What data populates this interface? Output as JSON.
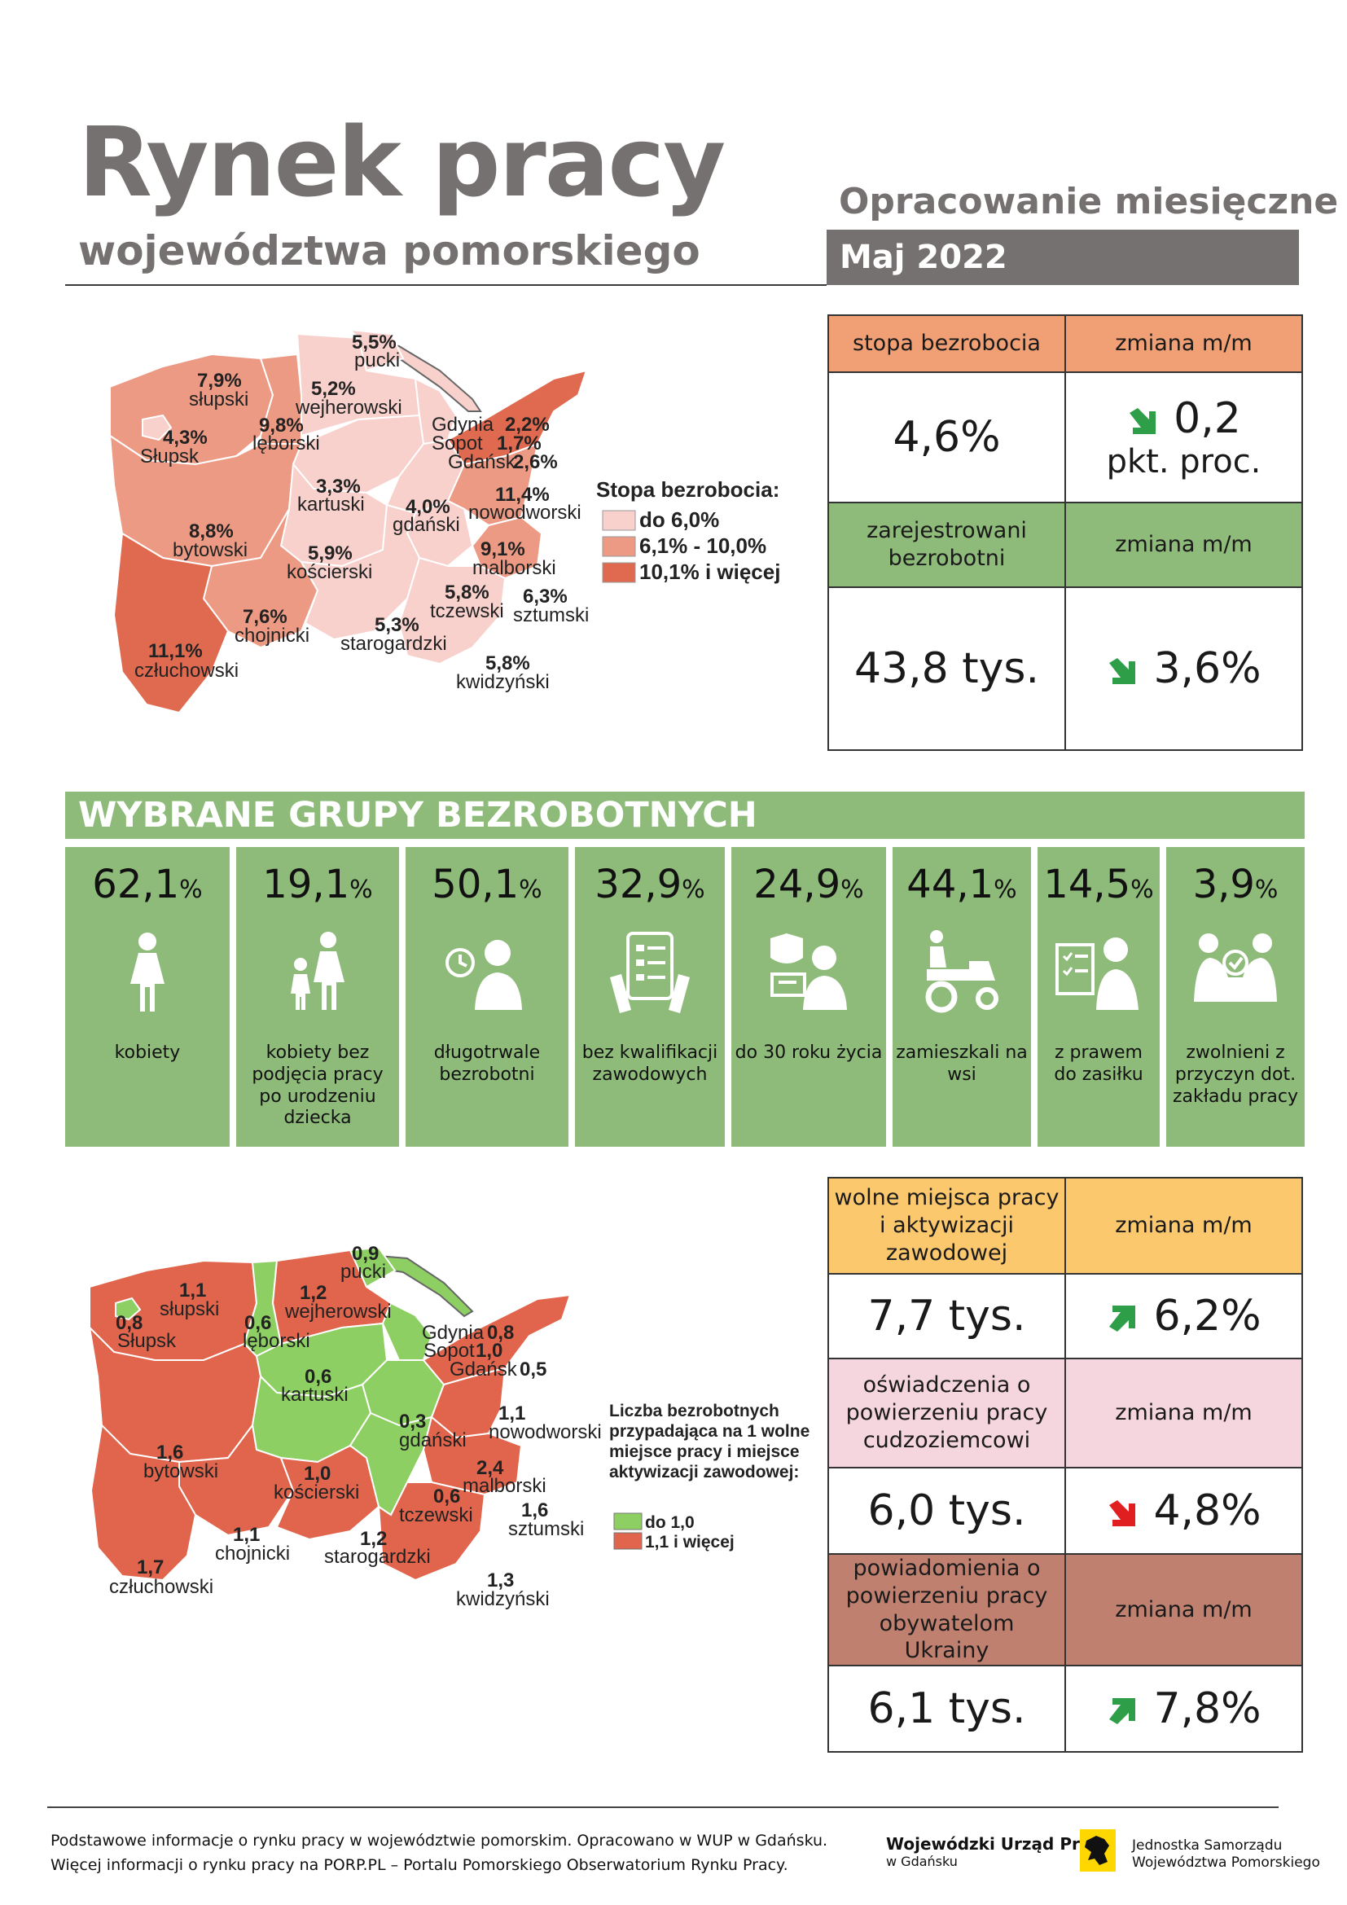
{
  "header": {
    "title": "Rynek pracy",
    "subtitle": "województwa pomorskiego",
    "publication_type": "Opracowanie miesięczne",
    "period": "Maj 2022"
  },
  "kpi_unemployment": {
    "rate_label": "stopa bezrobocia",
    "change_label": "zmiana m/m",
    "rate_value": "4,6%",
    "rate_change_value": "0,2",
    "rate_change_unit": "pkt. proc.",
    "rate_change_direction": "down",
    "registered_label": "zarejestrowani bezrobotni",
    "registered_change_label": "zmiana m/m",
    "registered_value": "43,8 tys.",
    "registered_change_value": "3,6%",
    "registered_change_direction": "down"
  },
  "colors": {
    "accent_green": "#8fbb7a",
    "header_salmon": "#f0a074",
    "yellow": "#fcc86e",
    "pink": "#f5d5de",
    "brown": "#c08070",
    "arrow_green": "#2e9e48",
    "arrow_red": "#e02020"
  },
  "map1": {
    "legend_title": "Stopa bezrobocia:",
    "legend": [
      "do 6,0%",
      "6,1% - 10,0%",
      "10,1% i więcej"
    ],
    "legend_colors": [
      "#f8d0cc",
      "#ec9a84",
      "#e06a50"
    ],
    "regions": [
      {
        "value": "5,5%",
        "name": "pucki",
        "cls": 0
      },
      {
        "value": "7,9%",
        "name": "słupski",
        "cls": 1
      },
      {
        "value": "5,2%",
        "name": "wejherowski",
        "cls": 0
      },
      {
        "value": "4,3%",
        "name": "Słupsk",
        "cls": 0
      },
      {
        "value": "9,8%",
        "name": "lęborski",
        "cls": 1
      },
      {
        "value": "2,2%",
        "name": "Gdynia",
        "cls": 0
      },
      {
        "value": "1,7%",
        "name": "Sopot",
        "cls": 0
      },
      {
        "value": "2,6%",
        "name": "Gdańsk",
        "cls": 0
      },
      {
        "value": "3,3%",
        "name": "kartuski",
        "cls": 0
      },
      {
        "value": "11,4%",
        "name": "nowodworski",
        "cls": 2
      },
      {
        "value": "4,0%",
        "name": "gdański",
        "cls": 0
      },
      {
        "value": "8,8%",
        "name": "bytowski",
        "cls": 1
      },
      {
        "value": "5,9%",
        "name": "kościerski",
        "cls": 0
      },
      {
        "value": "9,1%",
        "name": "malborski",
        "cls": 1
      },
      {
        "value": "5,8%",
        "name": "tczewski",
        "cls": 0
      },
      {
        "value": "6,3%",
        "name": "sztumski",
        "cls": 1
      },
      {
        "value": "7,6%",
        "name": "chojnicki",
        "cls": 1
      },
      {
        "value": "5,3%",
        "name": "starogardzki",
        "cls": 0
      },
      {
        "value": "11,1%",
        "name": "człuchowski",
        "cls": 2
      },
      {
        "value": "5,8%",
        "name": "kwidzyński",
        "cls": 0
      }
    ]
  },
  "groups": {
    "title": "WYBRANE GRUPY BEZROBOTNYCH",
    "items": [
      {
        "value": "62,1",
        "unit": "%",
        "label": "kobiety",
        "icon": "woman-icon"
      },
      {
        "value": "19,1",
        "unit": "%",
        "label": "kobiety bez podjęcia pracy po urodzeniu dziecka",
        "icon": "mother-child-icon"
      },
      {
        "value": "50,1",
        "unit": "%",
        "label": "długotrwale bezrobotni",
        "icon": "clock-person-icon"
      },
      {
        "value": "32,9",
        "unit": "%",
        "label": "bez kwalifikacji zawodowych",
        "icon": "tablet-hands-icon"
      },
      {
        "value": "24,9",
        "unit": "%",
        "label": "do 30 roku życia",
        "icon": "young-person-laptop-icon"
      },
      {
        "value": "44,1",
        "unit": "%",
        "label": "zamieszkali na wsi",
        "icon": "tractor-icon"
      },
      {
        "value": "14,5",
        "unit": "%",
        "label": "z prawem do zasiłku",
        "icon": "checklist-person-icon"
      },
      {
        "value": "3,9",
        "unit": "%",
        "label": "zwolnieni z przyczyn dot. zakładu pracy",
        "icon": "handshake-icon"
      }
    ]
  },
  "map2": {
    "legend_title": "Liczba bezrobotnych przypadająca na 1 wolne miejsce pracy i miejsce aktywizacji zawodowej:",
    "legend": [
      "do 1,0",
      "1,1 i więcej"
    ],
    "legend_colors": [
      "#8dcf62",
      "#e0654c"
    ],
    "regions": [
      {
        "value": "0,9",
        "name": "pucki",
        "cls": 0
      },
      {
        "value": "1,1",
        "name": "słupski",
        "cls": 1
      },
      {
        "value": "1,2",
        "name": "wejherowski",
        "cls": 1
      },
      {
        "value": "0,6",
        "name": "lęborski",
        "cls": 0
      },
      {
        "value": "0,8",
        "name": "Słupsk",
        "cls": 0
      },
      {
        "value": "0,8",
        "name": "Gdynia",
        "cls": 0
      },
      {
        "value": "1,0",
        "name": "Sopot",
        "cls": 0
      },
      {
        "value": "0,5",
        "name": "Gdańsk",
        "cls": 0
      },
      {
        "value": "0,6",
        "name": "kartuski",
        "cls": 0
      },
      {
        "value": "1,1",
        "name": "nowodworski",
        "cls": 1
      },
      {
        "value": "0,3",
        "name": "gdański",
        "cls": 0
      },
      {
        "value": "1,6",
        "name": "bytowski",
        "cls": 1
      },
      {
        "value": "2,4",
        "name": "malborski",
        "cls": 1
      },
      {
        "value": "1,0",
        "name": "kościerski",
        "cls": 0
      },
      {
        "value": "0,6",
        "name": "tczewski",
        "cls": 0
      },
      {
        "value": "1,6",
        "name": "sztumski",
        "cls": 1
      },
      {
        "value": "1,1",
        "name": "chojnicki",
        "cls": 1
      },
      {
        "value": "1,2",
        "name": "starogardzki",
        "cls": 1
      },
      {
        "value": "1,7",
        "name": "człuchowski",
        "cls": 1
      },
      {
        "value": "1,3",
        "name": "kwidzyński",
        "cls": 1
      }
    ]
  },
  "kpi_offers": {
    "vacancies_label": "wolne miejsca pracy i aktywizacji zawodowej",
    "change_label": "zmiana m/m",
    "vacancies_value": "7,7 tys.",
    "vacancies_change": "6,2%",
    "vacancies_direction": "up",
    "declarations_label": "oświadczenia o powierzeniu pracy cudzoziemcowi",
    "declarations_value": "6,0 tys.",
    "declarations_change": "4,8%",
    "declarations_direction": "down",
    "notifications_label": "powiadomienia o powierzeniu pracy obywatelom Ukrainy",
    "notifications_value": "6,1 tys.",
    "notifications_change": "7,8%",
    "notifications_direction": "up"
  },
  "footer": {
    "line1": "Podstawowe informacje o rynku pracy w województwie pomorskim. Opracowano w WUP w Gdańsku.",
    "line2": "Więcej informacji o rynku pracy na PORP.PL – Portalu Pomorskiego Obserwatorium Rynku Pracy.",
    "wup_name": "Wojewódzki Urząd Pracy",
    "wup_city": "w Gdańsku",
    "js_line1": "Jednostka Samorządu",
    "js_line2": "Województwa Pomorskiego"
  }
}
